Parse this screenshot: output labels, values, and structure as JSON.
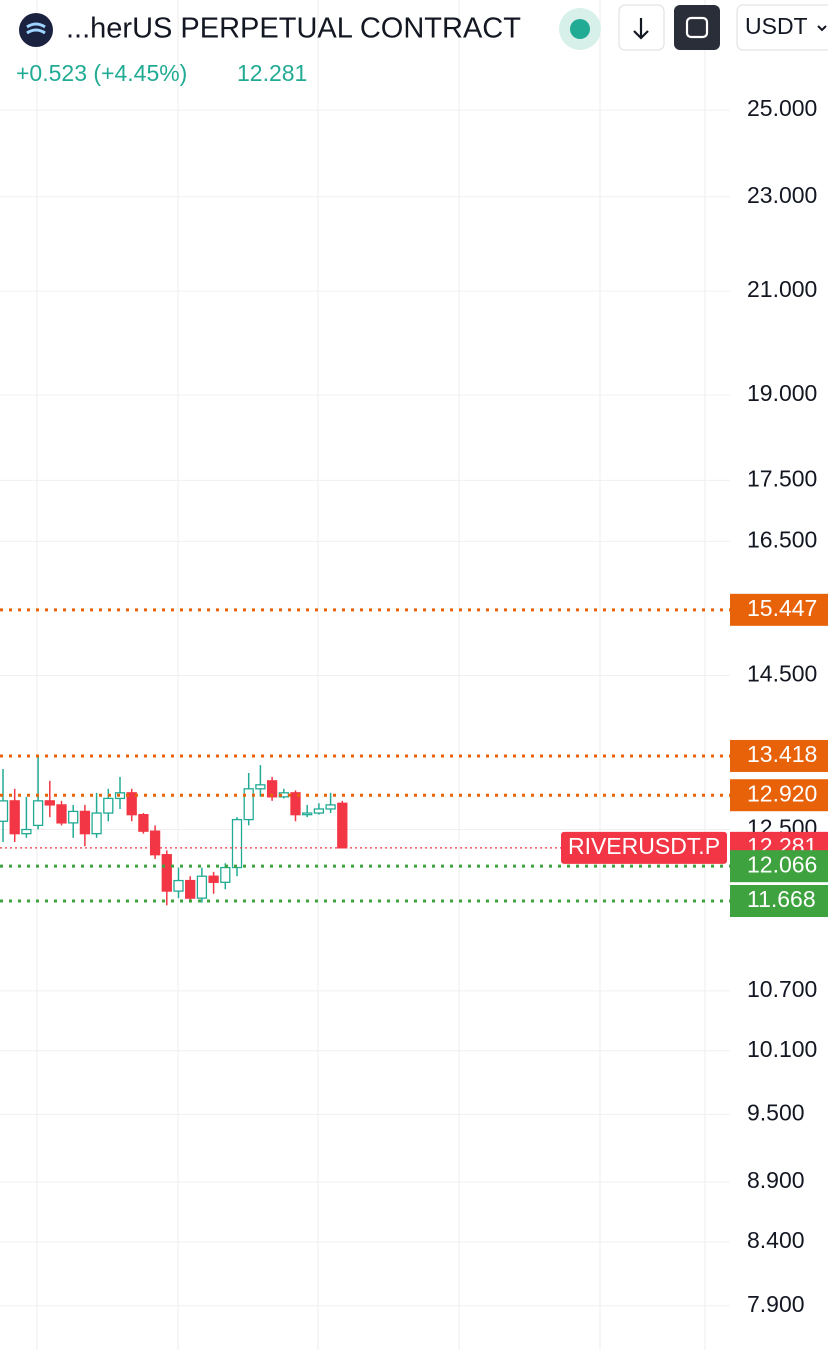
{
  "chart_data": {
    "type": "candlestick",
    "title": "...herUS PERPETUAL CONTRACT",
    "change": "+0.523 (+4.45%)",
    "currency": "USDT",
    "symbol_label": "RIVERUSDT.P",
    "log_scale": true,
    "grid": true,
    "ylim": [
      7.57,
      27.8
    ],
    "yticks": [
      {
        "value": 25,
        "label": "25.000"
      },
      {
        "value": 23,
        "label": "23.000"
      },
      {
        "value": 21,
        "label": "21.000"
      },
      {
        "value": 19,
        "label": "19.000"
      },
      {
        "value": 17.5,
        "label": "17.500"
      },
      {
        "value": 16.5,
        "label": "16.500"
      },
      {
        "value": 14.5,
        "label": "14.500"
      },
      {
        "value": 12.5,
        "label": "12.500"
      },
      {
        "value": 10.7,
        "label": "10.700"
      },
      {
        "value": 10.1,
        "label": "10.100"
      },
      {
        "value": 9.5,
        "label": "9.500"
      },
      {
        "value": 8.9,
        "label": "8.900"
      },
      {
        "value": 8.4,
        "label": "8.400"
      },
      {
        "value": 7.9,
        "label": "7.900"
      }
    ],
    "price_lines": [
      {
        "value": 15.447,
        "color": "#e8620a"
      },
      {
        "value": 13.418,
        "color": "#e8620a"
      },
      {
        "value": {
          "value": 12.92,
          "label": "12.920"
        },
        "color": "#e8620a"
      },
      {
        "value": 12.281,
        "color": "#f23645",
        "current": true
      },
      {
        "value": 12.066,
        "color": "#3ea33e"
      },
      {
        "value": 11.668,
        "color": "#3ea33e"
      }
    ],
    "up_color": "#22ab94",
    "down_color": "#f23645",
    "open": [
      12.6,
      12.85,
      12.45,
      12.55,
      12.85,
      12.8,
      12.58,
      12.72,
      12.45,
      12.7,
      12.88,
      12.95,
      12.68,
      12.48,
      12.2,
      11.78,
      11.9,
      11.7,
      11.95,
      11.88,
      12.05,
      12.62,
      13.0,
      13.1,
      12.9,
      12.95,
      12.68,
      12.7,
      12.75,
      12.82
    ],
    "high": [
      13.25,
      13.0,
      12.9,
      13.4,
      13.1,
      12.85,
      12.8,
      12.8,
      12.95,
      13.0,
      13.15,
      13.0,
      12.7,
      12.55,
      12.25,
      12.05,
      11.95,
      12.05,
      12.0,
      12.1,
      12.65,
      13.2,
      13.3,
      13.15,
      13.0,
      12.98,
      12.8,
      12.82,
      12.95,
      12.85
    ],
    "low": [
      12.35,
      12.35,
      12.4,
      12.5,
      12.65,
      12.55,
      12.4,
      12.3,
      12.4,
      12.6,
      12.75,
      12.6,
      12.45,
      12.15,
      11.62,
      11.7,
      11.65,
      11.65,
      11.75,
      11.8,
      11.95,
      12.55,
      12.9,
      12.85,
      12.88,
      12.6,
      12.65,
      12.68,
      12.7,
      12.28
    ],
    "close": [
      12.85,
      12.45,
      12.5,
      12.85,
      12.8,
      12.58,
      12.72,
      12.45,
      12.7,
      12.88,
      12.95,
      12.68,
      12.48,
      12.2,
      11.78,
      11.9,
      11.7,
      11.95,
      11.88,
      12.05,
      12.62,
      13.0,
      13.05,
      12.9,
      12.95,
      12.68,
      12.7,
      12.75,
      12.8,
      12.281
    ]
  }
}
